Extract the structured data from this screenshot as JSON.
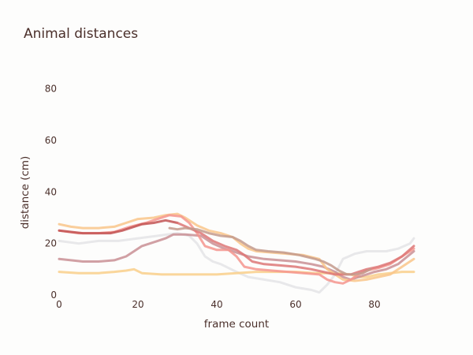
{
  "chart_data": {
    "type": "line",
    "title": "Animal distances",
    "xlabel": "frame count",
    "ylabel": "distance (cm)",
    "xlim": [
      0,
      90
    ],
    "ylim": [
      0,
      90
    ],
    "x_ticks": [
      0,
      20,
      40,
      60,
      80
    ],
    "y_ticks": [
      0,
      20,
      40,
      60,
      80
    ],
    "grid": false,
    "legend": "none",
    "series": [
      {
        "color": "#e4e4e6",
        "points": [
          [
            0,
            21
          ],
          [
            5,
            20
          ],
          [
            10,
            21
          ],
          [
            15,
            21
          ],
          [
            20,
            22
          ],
          [
            25,
            23
          ],
          [
            30,
            24
          ],
          [
            33,
            23
          ],
          [
            35,
            20
          ],
          [
            37,
            15
          ],
          [
            39,
            13
          ],
          [
            41,
            12
          ],
          [
            45,
            9
          ],
          [
            48,
            7
          ],
          [
            52,
            6
          ],
          [
            56,
            5
          ],
          [
            60,
            3
          ],
          [
            64,
            2
          ],
          [
            66,
            1
          ],
          [
            68,
            4
          ],
          [
            70,
            8
          ],
          [
            72,
            14
          ],
          [
            75,
            16
          ],
          [
            78,
            17
          ],
          [
            80,
            17
          ],
          [
            83,
            17
          ],
          [
            86,
            18
          ],
          [
            89,
            20
          ],
          [
            90,
            22
          ]
        ]
      },
      {
        "color": "#f9cf89",
        "points": [
          [
            0,
            9
          ],
          [
            5,
            8.5
          ],
          [
            10,
            8.5
          ],
          [
            14,
            9
          ],
          [
            17,
            9.5
          ],
          [
            19,
            10
          ],
          [
            21,
            8.5
          ],
          [
            26,
            8
          ],
          [
            32,
            8
          ],
          [
            36,
            8
          ],
          [
            40,
            8
          ],
          [
            45,
            8.5
          ],
          [
            50,
            9
          ],
          [
            55,
            9
          ],
          [
            60,
            9
          ],
          [
            65,
            8.5
          ],
          [
            70,
            8.5
          ],
          [
            74,
            8
          ],
          [
            76,
            7
          ],
          [
            78,
            7
          ],
          [
            81,
            8
          ],
          [
            84,
            8.5
          ],
          [
            87,
            9
          ],
          [
            90,
            9
          ]
        ]
      },
      {
        "color": "#c98f94",
        "points": [
          [
            0,
            14
          ],
          [
            3,
            13.5
          ],
          [
            6,
            13
          ],
          [
            10,
            13
          ],
          [
            14,
            13.5
          ],
          [
            17,
            15
          ],
          [
            19,
            17
          ],
          [
            21,
            19
          ],
          [
            23,
            20
          ],
          [
            25,
            21
          ],
          [
            27,
            22
          ],
          [
            29,
            23.5
          ],
          [
            32,
            23.5
          ],
          [
            36,
            23
          ],
          [
            39,
            20
          ],
          [
            42,
            18
          ],
          [
            45,
            16.5
          ],
          [
            48,
            15
          ],
          [
            52,
            14
          ],
          [
            56,
            13.5
          ],
          [
            60,
            13
          ],
          [
            64,
            12
          ],
          [
            67,
            11
          ],
          [
            70,
            9
          ],
          [
            72,
            7
          ],
          [
            74,
            6
          ],
          [
            76,
            7
          ],
          [
            78,
            8
          ],
          [
            80,
            9
          ],
          [
            83,
            10
          ],
          [
            86,
            12
          ],
          [
            90,
            17
          ]
        ]
      },
      {
        "color": "#f9c58a",
        "points": [
          [
            0,
            27.5
          ],
          [
            3,
            26.5
          ],
          [
            6,
            26
          ],
          [
            10,
            26
          ],
          [
            14,
            26.5
          ],
          [
            17,
            28
          ],
          [
            20,
            29.5
          ],
          [
            24,
            30
          ],
          [
            27,
            31
          ],
          [
            30,
            31.5
          ],
          [
            32,
            30
          ],
          [
            35,
            27
          ],
          [
            38,
            25
          ],
          [
            41,
            24
          ],
          [
            44,
            22.5
          ],
          [
            46,
            20
          ],
          [
            48,
            18
          ],
          [
            50,
            17
          ],
          [
            54,
            16.5
          ],
          [
            58,
            16
          ],
          [
            62,
            15.5
          ],
          [
            66,
            14
          ],
          [
            68,
            10
          ],
          [
            70,
            8
          ],
          [
            72,
            6
          ],
          [
            75,
            5.5
          ],
          [
            78,
            6
          ],
          [
            81,
            7
          ],
          [
            84,
            8
          ],
          [
            87,
            11
          ],
          [
            90,
            14
          ]
        ]
      },
      {
        "color": "#f4958e",
        "points": [
          [
            0,
            25
          ],
          [
            5,
            24
          ],
          [
            10,
            24
          ],
          [
            14,
            24.5
          ],
          [
            18,
            26.5
          ],
          [
            22,
            28
          ],
          [
            25,
            29.5
          ],
          [
            28,
            31
          ],
          [
            31,
            30.5
          ],
          [
            33,
            28
          ],
          [
            35,
            24
          ],
          [
            37,
            19
          ],
          [
            40,
            17.5
          ],
          [
            43,
            17.5
          ],
          [
            45,
            15
          ],
          [
            47,
            11
          ],
          [
            50,
            10
          ],
          [
            54,
            9.5
          ],
          [
            58,
            9
          ],
          [
            62,
            8.5
          ],
          [
            66,
            8
          ],
          [
            68,
            6
          ],
          [
            70,
            5
          ],
          [
            72,
            4.5
          ],
          [
            74,
            6
          ],
          [
            76,
            8
          ],
          [
            78,
            9.5
          ],
          [
            81,
            10.5
          ],
          [
            84,
            12
          ],
          [
            87,
            15
          ],
          [
            90,
            18
          ]
        ]
      },
      {
        "color": "#c25454",
        "points": [
          [
            0,
            25
          ],
          [
            3,
            24.5
          ],
          [
            6,
            24
          ],
          [
            10,
            24
          ],
          [
            13,
            24
          ],
          [
            16,
            25
          ],
          [
            19,
            26.5
          ],
          [
            21,
            27.5
          ],
          [
            24,
            28
          ],
          [
            27,
            29
          ],
          [
            30,
            28
          ]
        ]
      },
      {
        "color": "#dd7777",
        "points": [
          [
            30,
            28
          ],
          [
            33,
            26
          ],
          [
            36,
            24
          ],
          [
            39,
            21
          ],
          [
            42,
            19
          ],
          [
            45,
            17.5
          ],
          [
            47,
            15.5
          ],
          [
            49,
            13
          ],
          [
            52,
            12
          ],
          [
            56,
            11.5
          ],
          [
            60,
            11
          ],
          [
            64,
            10
          ],
          [
            67,
            9
          ],
          [
            70,
            8
          ],
          [
            72,
            8
          ],
          [
            74,
            8
          ],
          [
            76,
            9
          ],
          [
            78,
            10
          ],
          [
            81,
            11
          ],
          [
            84,
            12.5
          ],
          [
            87,
            15
          ],
          [
            90,
            19
          ]
        ]
      },
      {
        "color": "#c39a8c",
        "points": [
          [
            28,
            26
          ],
          [
            30,
            25.5
          ],
          [
            32,
            26
          ],
          [
            35,
            25.5
          ],
          [
            38,
            24
          ],
          [
            41,
            23
          ],
          [
            44,
            22.5
          ],
          [
            46,
            21
          ],
          [
            48,
            19
          ],
          [
            50,
            17.5
          ],
          [
            53,
            17
          ],
          [
            57,
            16.5
          ],
          [
            61,
            15.5
          ],
          [
            65,
            14
          ],
          [
            67,
            13
          ],
          [
            69,
            11.5
          ],
          [
            71,
            9.5
          ],
          [
            73,
            8
          ],
          [
            75,
            8
          ],
          [
            77,
            8.5
          ],
          [
            79,
            10
          ]
        ]
      }
    ]
  }
}
